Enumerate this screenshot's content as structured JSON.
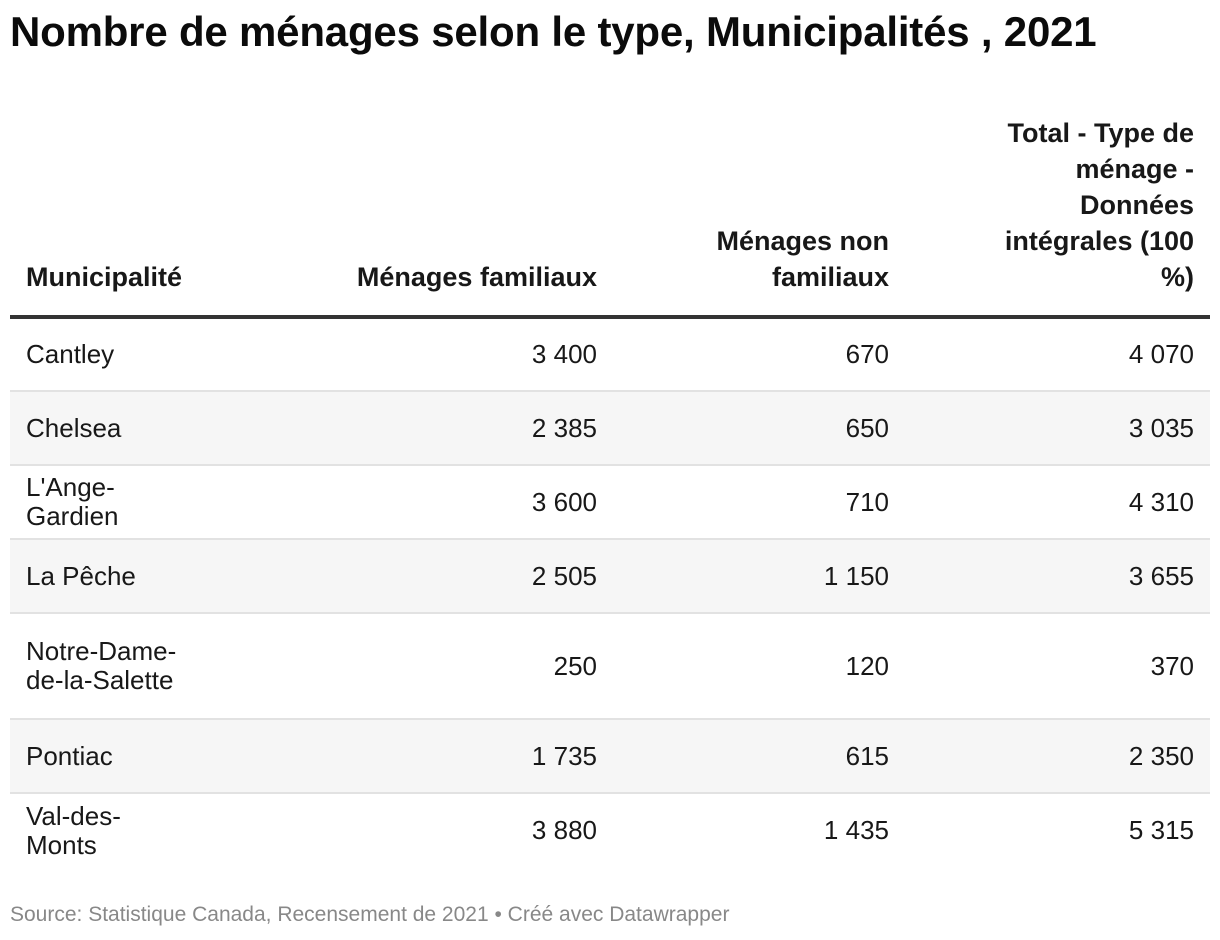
{
  "chart_data": {
    "type": "table",
    "title": "Nombre de ménages selon le type, Municipalités , 2021",
    "columns": [
      "Municipalité",
      "Ménages familiaux",
      "Ménages non familiaux",
      "Total - Type de ménage - Données intégrales (100 %)"
    ],
    "rows": [
      {
        "municipalite": "Cantley",
        "familiaux": "3 400",
        "non_familiaux": "670",
        "total": "4 070"
      },
      {
        "municipalite": "Chelsea",
        "familiaux": "2 385",
        "non_familiaux": "650",
        "total": "3 035"
      },
      {
        "municipalite": "L'Ange-Gardien",
        "familiaux": "3 600",
        "non_familiaux": "710",
        "total": "4 310"
      },
      {
        "municipalite": "La Pêche",
        "familiaux": "2 505",
        "non_familiaux": "1 150",
        "total": "3 655"
      },
      {
        "municipalite": "Notre-Dame-de-la-Salette",
        "familiaux": "250",
        "non_familiaux": "120",
        "total": "370"
      },
      {
        "municipalite": "Pontiac",
        "familiaux": "1 735",
        "non_familiaux": "615",
        "total": "2 350"
      },
      {
        "municipalite": "Val-des-Monts",
        "familiaux": "3 880",
        "non_familiaux": "1 435",
        "total": "5 315"
      }
    ],
    "source": "Source: Statistique Canada, Recensement de 2021 • Créé avec Datawrapper"
  }
}
